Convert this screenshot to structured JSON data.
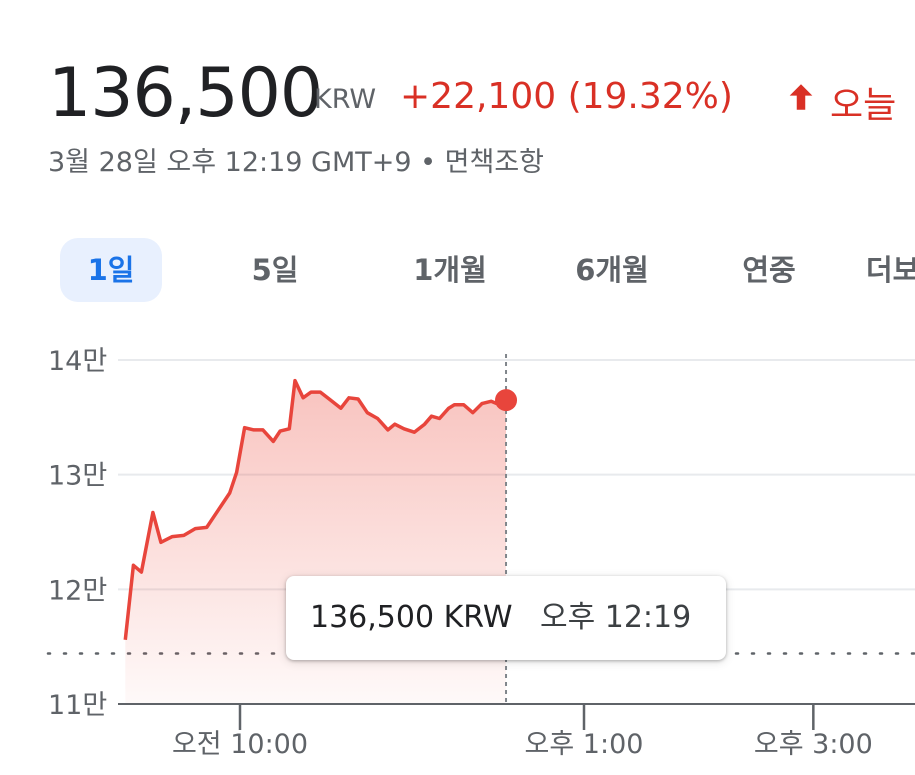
{
  "quote": {
    "price": "136,500",
    "currency": "KRW",
    "change": "+22,100 (19.32%)",
    "period": "오늘",
    "direction_icon": "arrow-up-icon",
    "up_color": "#d93025"
  },
  "timestamp": "3월 28일 오후 12:19 GMT+9 • 면책조항",
  "tabs": [
    {
      "label": "1일",
      "active": true
    },
    {
      "label": "5일",
      "active": false
    },
    {
      "label": "1개월",
      "active": false
    },
    {
      "label": "6개월",
      "active": false
    },
    {
      "label": "연중",
      "active": false
    },
    {
      "label": "더보기",
      "active": false
    }
  ],
  "tooltip": {
    "price": "136,500 KRW",
    "time": "오후 12:19"
  },
  "chart_data": {
    "type": "area",
    "y_tick_labels": [
      "14만",
      "13만",
      "12만",
      "11만"
    ],
    "y_tick_values": [
      140000,
      130000,
      120000,
      110000
    ],
    "ylim": [
      110000,
      140000
    ],
    "x_tick_labels": [
      "오전 10:00",
      "오후 1:00",
      "오후 3:00"
    ],
    "x_tick_hours": [
      10,
      13,
      15
    ],
    "x_unit": "hours (local time)",
    "previous_close": 114400,
    "line_color": "#e8453c",
    "series": [
      {
        "x": [
          9.0,
          9.07,
          9.14,
          9.24,
          9.31,
          9.41,
          9.51,
          9.61,
          9.71,
          9.81,
          9.91,
          9.97,
          10.04,
          10.12,
          10.2,
          10.29,
          10.35,
          10.43,
          10.48,
          10.55,
          10.62,
          10.7,
          10.79,
          10.88,
          10.95,
          11.03,
          11.11,
          11.2,
          11.29,
          11.35,
          11.43,
          11.52,
          11.61,
          11.67,
          11.74,
          11.82,
          11.87,
          11.95,
          12.03,
          12.11,
          12.19,
          12.24,
          12.32
        ],
        "y": [
          115600,
          122100,
          121500,
          126700,
          124100,
          124600,
          124700,
          125300,
          125400,
          126900,
          128400,
          130200,
          134100,
          133900,
          133900,
          132900,
          133800,
          134000,
          138200,
          136700,
          137200,
          137200,
          136500,
          135800,
          136700,
          136600,
          135400,
          134900,
          133900,
          134400,
          134000,
          133700,
          134400,
          135100,
          134900,
          135800,
          136100,
          136100,
          135400,
          136200,
          136400,
          136200,
          136500
        ]
      }
    ]
  }
}
